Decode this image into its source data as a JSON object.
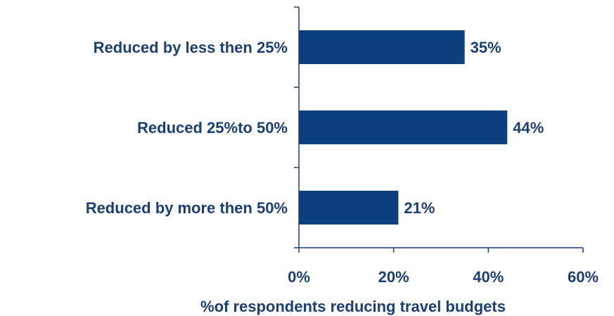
{
  "chart_data": {
    "type": "bar",
    "orientation": "horizontal",
    "categories": [
      "Reduced by less then 25%",
      "Reduced 25%to 50%",
      "Reduced by more then 50%"
    ],
    "values": [
      35,
      44,
      21
    ],
    "data_labels": [
      "35%",
      "44%",
      "21%"
    ],
    "xlim": [
      0,
      60
    ],
    "x_ticks": [
      0,
      20,
      40,
      60
    ],
    "x_tick_labels": [
      "0%",
      "20%",
      "40%",
      "60%"
    ],
    "xlabel": "%of respondents reducing travel budgets",
    "ylabel": "",
    "title": "",
    "grid": false,
    "legend": "none",
    "colors": {
      "bar": "#0b3f7e",
      "axis": "#1c3f73",
      "text": "#1c3f73"
    }
  }
}
